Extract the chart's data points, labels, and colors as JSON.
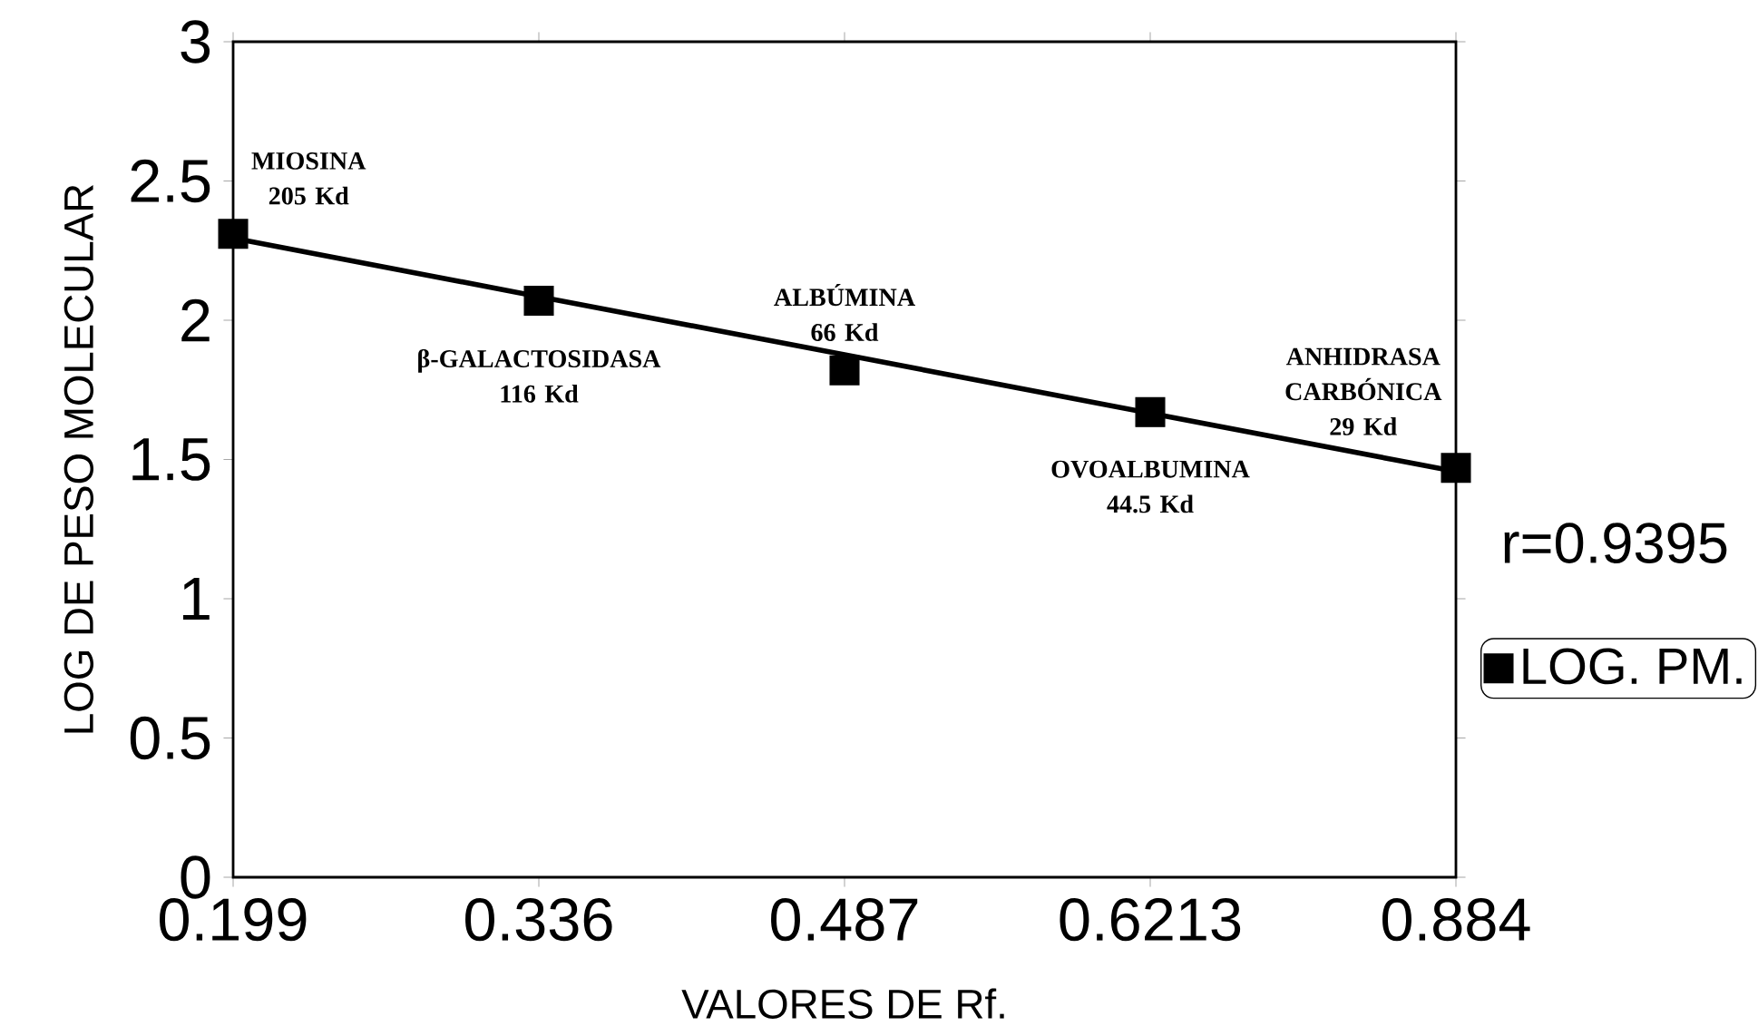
{
  "chart_data": {
    "type": "scatter",
    "xlabel": "VALORES DE Rf.",
    "ylabel": "LOG DE PESO MOLECULAR",
    "categories": [
      "0.199",
      "0.336",
      "0.487",
      "0.6213",
      "0.884"
    ],
    "series": [
      {
        "name": "LOG. PM.",
        "color": "#000000",
        "marker": "square",
        "values": [
          2.31,
          2.07,
          1.82,
          1.67,
          1.47
        ]
      },
      {
        "type": "line",
        "color": "#000000",
        "line_style": "solid",
        "marker": "none",
        "values": [
          2.295,
          2.085,
          1.876,
          1.666,
          1.457
        ]
      }
    ],
    "ylim": [
      0,
      3
    ],
    "yticks": [
      0,
      0.5,
      1,
      1.5,
      2,
      2.5,
      3
    ],
    "grid": false,
    "legend": "right",
    "annotations": [
      {
        "text": "MIOSINA 205 Kd",
        "x": "0.199",
        "y": 2.31
      },
      {
        "text": "β-GALACTOSIDASA 116 Kd",
        "x": "0.336",
        "y": 2.07
      },
      {
        "text": "ALBÚMINA 66 Kd",
        "x": "0.487",
        "y": 1.82
      },
      {
        "text": "OVOALBUMINA 44.5 Kd",
        "x": "0.6213",
        "y": 1.67
      },
      {
        "text": "ANHIDRASA CARBÓNICA 29 Kd",
        "x": "0.884",
        "y": 1.47
      },
      "r=0.9395"
    ]
  }
}
